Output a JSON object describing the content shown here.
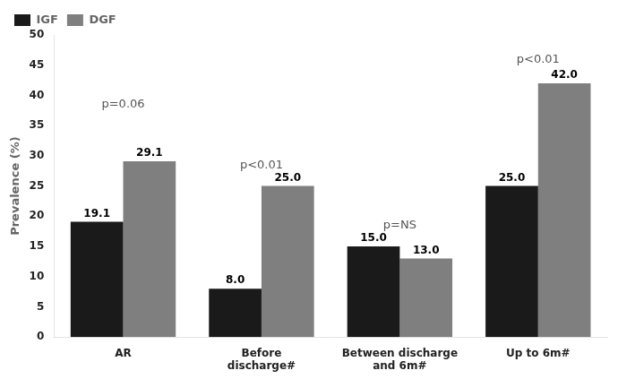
{
  "chart_data": {
    "type": "bar",
    "categories": [
      "AR",
      "Before\ndischarge#",
      "Between discharge\nand 6m#",
      "Up to 6m#"
    ],
    "series": [
      {
        "name": "IGF",
        "color": "#1a1a1a",
        "values": [
          19.1,
          8.0,
          15.0,
          25.0
        ],
        "value_labels": [
          "19.1",
          "8.0",
          "15.0",
          "25.0"
        ]
      },
      {
        "name": "DGF",
        "color": "#7f7f7f",
        "values": [
          29.1,
          25.0,
          13.0,
          42.0
        ],
        "value_labels": [
          "29.1",
          "25.0",
          "13.0",
          "42.0"
        ]
      }
    ],
    "ylabel": "Prevalence (%)",
    "ylim": [
      0,
      50
    ],
    "yticks": [
      0,
      5,
      10,
      15,
      20,
      25,
      30,
      35,
      40,
      45,
      50
    ],
    "annotations": [
      {
        "text": "p=0.06",
        "x": "AR",
        "y": 37.5
      },
      {
        "text": "p<0.01",
        "x": "Before\ndischarge#",
        "y": 27.5
      },
      {
        "text": "p=NS",
        "x": "Between discharge\nand 6m#",
        "y": 17.5
      },
      {
        "text": "p<0.01",
        "x": "Up to 6m#",
        "y": 45.0
      }
    ],
    "data_labels": true,
    "grid": false,
    "legend": "upper left"
  }
}
